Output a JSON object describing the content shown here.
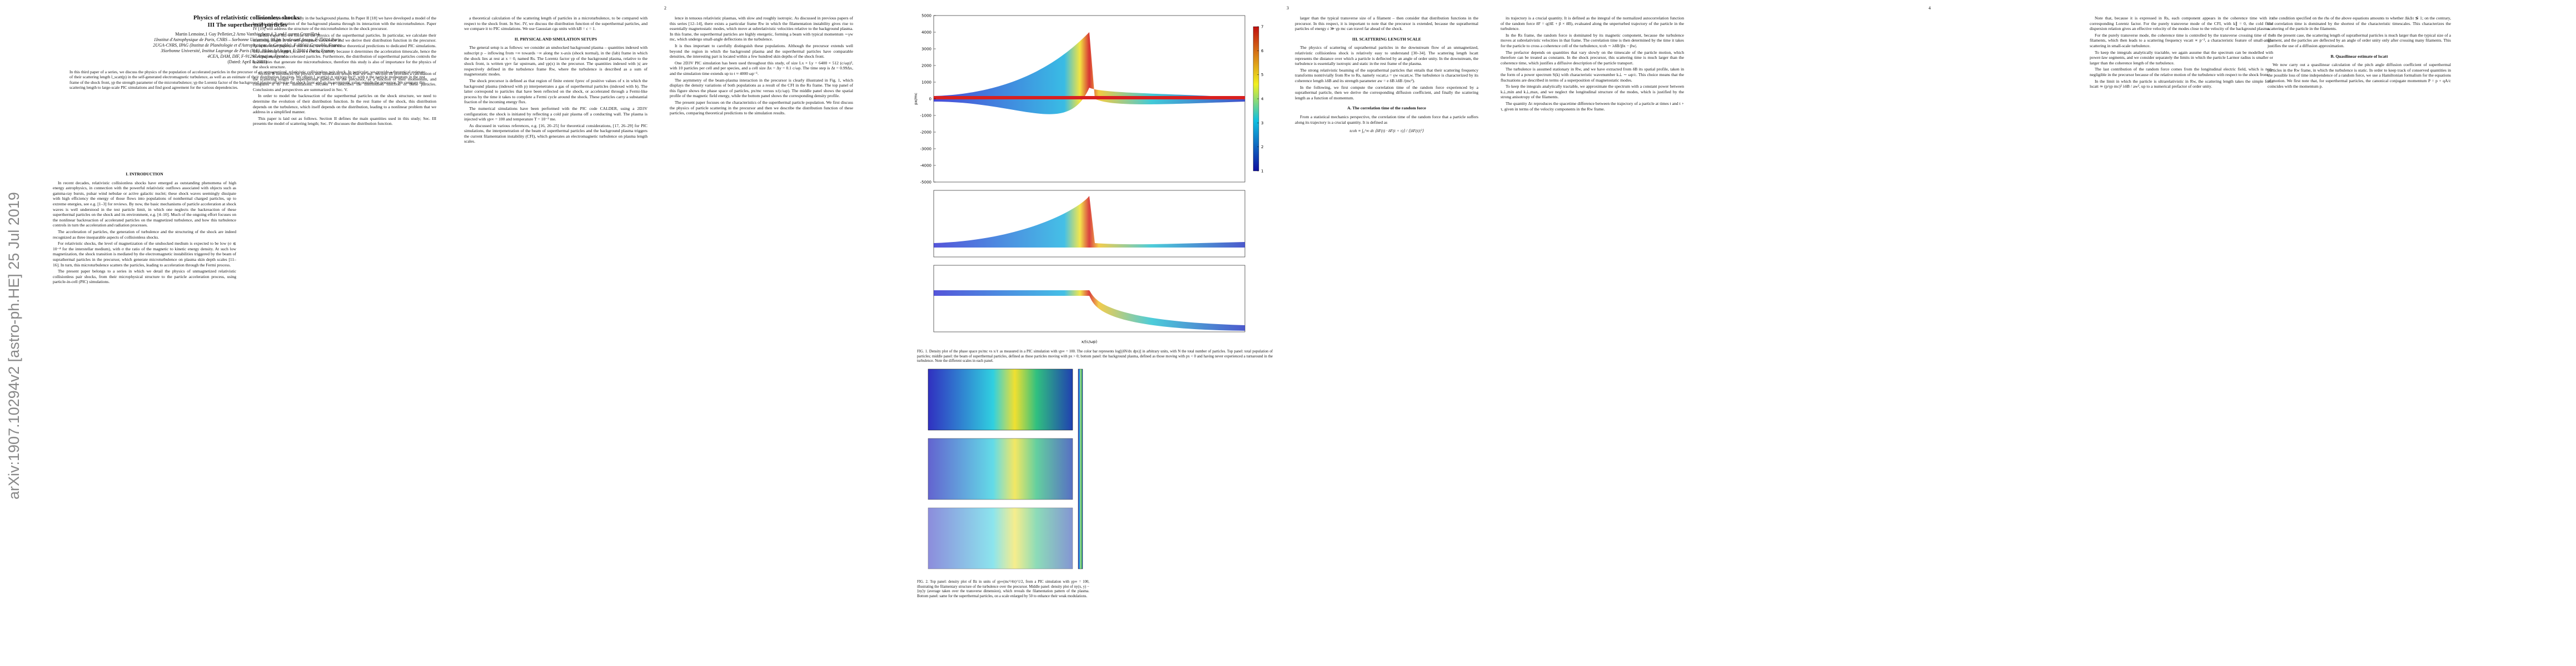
{
  "header": {
    "arxiv": "arXiv:1907.10294v2  [astro-ph.HE]  25 Jul 2019",
    "title": "Physics of relativistic collisionless shocks:",
    "subtitle": "III The superthermal particles",
    "authors": "Martin Lemoine,1 Guy Pelletier,2 Arno Vanthieghem,1,3 and Laurent Gremillet4",
    "affiliations": [
      "1Institut d'Astrophysique de Paris, CNRS – Sorbonne Université, 98 bis boulevard Arago, F-75014 Paris",
      "2UGA-CNRS, IPAG (Institut de Planétologie et d'Astrophysique de Grenoble), F-38041 Grenoble, France",
      "3Sorbonne Université, Institut Lagrange de Paris (ILP), 98 bis bd Arago, F-75014 Paris, France",
      "4CEA, DAM, DIF, F-91297 Arpajon, France"
    ],
    "date": "(Dated: April 8, 2021)",
    "abstract": "In this third paper of a series, we discuss the physics of the population of accelerated particles in the precursor of an unmagnetized, relativistic collisionless pair shock. In particular, we provide a theoretical estimate of their scattering length l_scatt(p) in the self-generated electromagnetic turbulence, as well as an estimate of their distribution function. We obtain l_scatt(p) ∝ γp(p/γp mc)², with p the particle momentum in the rest frame of the shock front, γp the strength parameter of the microturbulence; γp the Lorentz factor of the background plasma relative to the shock front and γp its asymptotic value outside the precursor. We compare this scattering length to large-scale PIC simulations and find good agreement for the various dependencies."
  },
  "page_numbers": [
    "2",
    "3",
    "4"
  ],
  "columns": [
    [
      {
        "heading": "I.   INTRODUCTION"
      },
      {
        "paragraph": "In recent decades, relativistic collisionless shocks have emerged as outstanding phenomena of high energy astrophysics, in connection with the powerful relativistic outflows associated with objects such as gamma-ray bursts, pulsar wind nebulae or active galactic nuclei; these shock waves seemingly dissipate with high efficiency the energy of those flows into populations of nonthermal charged particles, up to extreme energies, see e.g. [1–3] for reviews. By now, the basic mechanisms of particle acceleration at shock waves is well understood in the test particle limit, in which one neglects the backreaction of these superthermal particles on the shock and its environment, e.g. [4–10]. Much of the ongoing effort focuses on the nonlinear backreaction of accelerated particles on the magnetized turbulence, and how this turbulence controls in turn the acceleration and radiation processes."
      },
      {
        "paragraph": "The acceleration of particles, the generation of turbulence and the structuring of the shock are indeed recognized as three inseparable aspects of collisionless shocks."
      },
      {
        "paragraph": "For relativistic shocks, the level of magnetization of the unshocked medium is expected to be low (σ ≲ 10⁻⁴ for the interstellar medium), with σ the ratio of the magnetic to kinetic energy density. At such low magnetization, the shock transition is mediated by the electromagnetic instabilities triggered by the beam of suprathermal particles in the precursor, which generate microturbulence on plasma skin depth scales [11–16]. In turn, this microturbulence scatters the particles, leading to acceleration through the Fermi process."
      },
      {
        "paragraph": "The present paper belongs to a series in which we detail the physics of unmagnetized relativistic collisionless pair shocks, from their microphysical structure to the particle acceleration process, using particle-in-cell (PIC) simulations."
      }
    ],
    [
      {
        "paragraph": "to have only relativistically in the background plasma. In Paper II [18] we have developed a model of the heating and deceleration of the background plasma through its interaction with the microturbulence. Paper IV [19] will address the structure of the microturbulence in the shock precursor."
      },
      {
        "paragraph": "In this Paper III, we focus on the physics of the superthermal particles. In particular, we calculate their scattering length in the self-generated turbulence and we derive their distribution function in the precursor. As in the other papers of this series, we confront these theoretical predictions to dedicated PIC simulations. The scattering length l_scatt is a crucial quantity because it determines the acceleration timescale, hence the maximal energy of accelerated particles. Furthermore, the distribution of superthermal particles controls the instabilities that generate the microturbulence, therefore this study is also of importance for the physics of the shock structure."
      },
      {
        "paragraph": "Section II introduces the physics and simulation setups that we use. Section III provides a calculation of the scattering length of superthermal particles in the precursor, as a function of their momentum, and compares it to PIC simulations. Section IV describes the distribution function of these particles. Conclusions and perspectives are summarized in Sec. V."
      },
      {
        "paragraph": "In order to model the backreaction of the superthermal particles on the shock structure, we need to determine the evolution of their distribution function. In the rest frame of the shock, this distribution depends on the turbulence, which itself depends on the distribution, leading to a nonlinear problem that we address in a simplified manner."
      },
      {
        "paragraph": "This paper is laid out as follows. Section II defines the main quantities used in this study; Sec. III presents the model of scattering length; Sec. IV discusses the distribution function."
      }
    ],
    [
      {
        "paragraph": "a theoretical calculation of the scattering length of particles in a microturbulence, to be compared with respect to the shock front. In Sec. IV, we discuss the distribution function of the superthermal particles, and we compare it to PIC simulations. We use Gaussian cgs units with kB = c = 1."
      },
      {
        "heading": "II.   PHYSICAL AND SIMULATION SETUPS"
      },
      {
        "paragraph": "The general setup is as follows: we consider an unshocked background plasma – quantities indexed with subscript p – inflowing from +∞ towards −∞ along the x-axis (shock normal), in the (lab) frame in which the shock lies at rest at x = 0, named Rs. The Lorentz factor γp of the background plasma, relative to the shock front, is written γp∞ far upstream, and γp(x) in the precursor. The quantities indexed with |s| are respectively defined in the turbulence frame Rw, where the turbulence is described as a sum of magnetostatic modes."
      },
      {
        "paragraph": "The shock precursor is defined as that region of finite extent ℓprec of positive values of x in which the background plasma (indexed with p) interpenetrates a gas of superthermal particles (indexed with b). The latter correspond to particles that have been reflected on the shock, or accelerated through a Fermi-like process by the time it takes to complete a Fermi cycle around the shock. These particles carry a substantial fraction of the incoming energy flux."
      },
      {
        "paragraph": "The numerical simulations have been performed with the PIC code CALDER, using a 2D3V configuration; the shock is initiated by reflecting a cold pair plasma off a conducting wall. The plasma is injected with γp∞ = 100 and temperature T = 10⁻³ me."
      },
      {
        "paragraph": "As discussed in various references, e.g. [16, 20–25] for theoretical considerations, [17, 26–29] for PIC simulations, the interpenetration of the beam of superthermal particles and the background plasma triggers the current filamentation instability (CFI), which generates an electromagnetic turbulence on plasma length scales."
      }
    ],
    [
      {
        "paragraph": "lence in tenuous relativistic plasmas, with slow and roughly isotropic. As discussed in previous papers of this series [12–14], there exists a particular frame Rw in which the filamentation instability gives rise to essentially magnetostatic modes, which move at subrelativistic velocities relative to the background plasma. In this frame, the superthermal particles are highly energetic, forming a beam with typical momentum ∼γw mc, which undergo small-angle deflections in the turbulence."
      },
      {
        "paragraph": "It is thus important to carefully distinguish these populations. Although the precursor extends well beyond the region in which the background plasma and the superthermal particles have comparable densities, the interesting part is located within a few hundred skin depths of the shock front."
      },
      {
        "paragraph": "One 2D3V PIC simulation has been used throughout this study, of size Lx × Ly = 6400 × 512 (c/ωp)², with 10 particles per cell and per species, and a cell size Δx = Δy = 0.1 c/ωp. The time step is Δt = 0.99Δx, and the simulation time extends up to t ≈ 4000 ωp⁻¹."
      },
      {
        "paragraph": "The asymmetry of the beam-plasma interaction in the precursor is clearly illustrated in Fig. 1, which displays the density variations of both populations as a result of the CFI in the Rs frame. The top panel of this figure shows the phase space of particles, px/mc versus x/(c/ωp). The middle panel shows the spatial profile of the magnetic field energy, while the bottom panel shows the corresponding density profile."
      },
      {
        "paragraph": "The present paper focuses on the characteristics of the superthermal particle population. We first discuss the physics of particle scattering in the precursor and then we describe the distribution function of these particles, comparing theoretical predictions to the simulation results."
      }
    ],
    [
      {
        "paragraph": "larger than the typical transverse size of a filament – then consider that distribution functions in the precursor. In this respect, it is important to note that the precursor is extended, because the suprathermal particles of energy ε ≫ γp mc can travel far ahead of the shock."
      },
      {
        "heading": "III.   SCATTERING LENGTH SCALE"
      },
      {
        "paragraph": "The physics of scattering of suprathermal particles in the downstream flow of an unmagnetized, relativistic collisionless shock is relatively easy to understand [30–34]. The scattering length lscatt represents the distance over which a particle is deflected by an angle of order unity. In the downstream, the turbulence is essentially isotropic and static in the rest frame of the plasma."
      },
      {
        "paragraph": "The strong relativistic beaming of the suprathermal particles that entails that their scattering frequency transforms nontrivially from Rw to Rs, namely νscatt,s = γw νscatt,w. The turbulence is characterized by its coherence length λδB and its strength parameter aw = e δB λδB /(mc²)."
      },
      {
        "paragraph": "In the following, we first compute the correlation time of the random force experienced by a suprathermal particle, then we derive the corresponding diffusion coefficient, and finally the scattering length as a function of momentum."
      },
      {
        "heading": "A.   The correlation time of the random force"
      },
      {
        "paragraph": "From a statistical mechanics perspective, the correlation time of the random force that a particle suffers along its trajectory is a crucial quantity. It is defined as"
      },
      {
        "equation": "tcoh ≡ ∫₀^∞ dτ ⟨δF(t) · δF(t + τ)⟩ / ⟨|δF(t)|²⟩"
      }
    ],
    [
      {
        "paragraph": "its trajectory is a crucial quantity. It is defined as the integral of the normalized autocorrelation function of the random force δF = q(δE + β × δB), evaluated along the unperturbed trajectory of the particle in the turbulence."
      },
      {
        "paragraph": "In the Rs frame, the random force is dominated by its magnetic component, because the turbulence moves at subrelativistic velocities in that frame. The correlation time is then determined by the time it takes for the particle to cross a coherence cell of the turbulence, tcoh ∼ λδB/|βx − βw|."
      },
      {
        "paragraph": "The prefactor depends on quantities that vary slowly on the timescale of the particle motion, which therefore can be treated as constants. In the shock precursor, this scattering time is much larger than the coherence time, which justifies a diffusive description of the particle transport."
      },
      {
        "paragraph": "The turbulence is assumed stationary in Rw, and we have extracted from δB its spatial profile, taken in the form of a power spectrum S(k) with characteristic wavenumber k⊥ ∼ ωp/c. This choice means that the fluctuations are described in terms of a superposition of magnetostatic modes."
      },
      {
        "paragraph": "To keep the integrals analytically tractable, we approximate the spectrum with a constant power between k⊥,min and k⊥,max, and we neglect the longitudinal structure of the modes, which is justified by the strong anisotropy of the filaments."
      },
      {
        "paragraph": "The quantity Δτ reproduces the spacetime difference between the trajectory of a particle at times t and t + τ, given in terms of the velocity components in the Rw frame."
      }
    ],
    [
      {
        "paragraph": "Note that, because it is expressed in Rs, each component appears in the coherence time with its corresponding Lorentz factor. For the purely transverse mode of the CFI, with k∥ = 0, the cold fluid dispersion relation gives an effective velocity of the modes close to the velocity of the background plasma."
      },
      {
        "paragraph": "For the purely transverse mode, the coherence time is controlled by the transverse crossing time of the filaments, which then leads to a scattering frequency νscatt ∝ p⁻², a characteristic feature of small-angle scattering in small-scale turbulence."
      },
      {
        "paragraph": "To keep the integrals analytically tractable, we again assume that the spectrum can be modelled with power-law segments, and we consider separately the limits in which the particle Larmor radius is smaller or larger than the coherence length of the turbulence."
      },
      {
        "paragraph": "The last contribution of the random force comes from the longitudinal electric field, which is non-negligible in the precursor because of the relative motion of the turbulence with respect to the shock front."
      },
      {
        "paragraph": "In the limit in which the particle is ultrarelativistic in Rw, the scattering length takes the simple form lscatt ≃ (p/γp mc)² λδB / aw², up to a numerical prefactor of order unity."
      }
    ],
    [
      {
        "paragraph": "the condition specified on the rhs of the above equations amounts to whether ΔkΔτ ≶ 1; on the contrary, the correlation time is dominated by the shortest of the characteristic timescales. This characterizes the scattering of the particle in the filaments."
      },
      {
        "paragraph": "In the present case, the scattering length of suprathermal particles is much larger than the typical size of a filament, and the particles are deflected by an angle of order unity only after crossing many filaments. This justifies the use of a diffusion approximation."
      },
      {
        "heading": "B.   Quasilinear estimate of lscatt"
      },
      {
        "paragraph": "We now carry out a quasilinear calculation of the pitch angle diffusion coefficient of superthermal particles in the Rw frame, in which the turbulence is static. In order to keep track of conserved quantities in the possible loss of time independence of a random force, we use a Hamiltonian formalism for the equations of motion. We first note that, for superthermal particles, the canonical conjugate momentum P = p + qA/c coincides with the momentum p."
      }
    ]
  ],
  "figure1": {
    "ylabel": "px/mc",
    "xlabel": "x/(c/ωp)",
    "yticks": [
      5000,
      4000,
      3000,
      2000,
      1000,
      0,
      -1000,
      -2000,
      -3000,
      -4000,
      -5000
    ],
    "colorbar": [
      1,
      2,
      3,
      4,
      5,
      6,
      7
    ],
    "caption": "FIG. 1. Density plot of the phase space px/mc vs x/ℓ as measured in a PIC simulation with γp∞ = 100. The color bar represents log[(δN/dx dpx)] in arbitrary units, with N the total number of particles. Top panel: total population of particles; middle panel: the beam of superthermal particles, defined as those particles moving with px > 0; bottom panel: the background plasma, defined as those moving with px < 0 and having never experienced a turnaround in the turbulence. Note the different scales in each panel."
  },
  "figure2": {
    "caption": "FIG. 2. Top panel: density plot of Bz in units of γp∞(mc²/4π)^1/2, from a PIC simulation with γp∞ = 100, illustrating the filamentary structure of the turbulence over the precursor. Middle panel: density plot of ny(x, y) − ⟨ny⟩y (average taken over the transverse dimension), which reveals the filamentation pattern of the plasma. Bottom panel: same for the superthermal particles, on a scale enlarged by 50 to enhance their weak modulations."
  }
}
